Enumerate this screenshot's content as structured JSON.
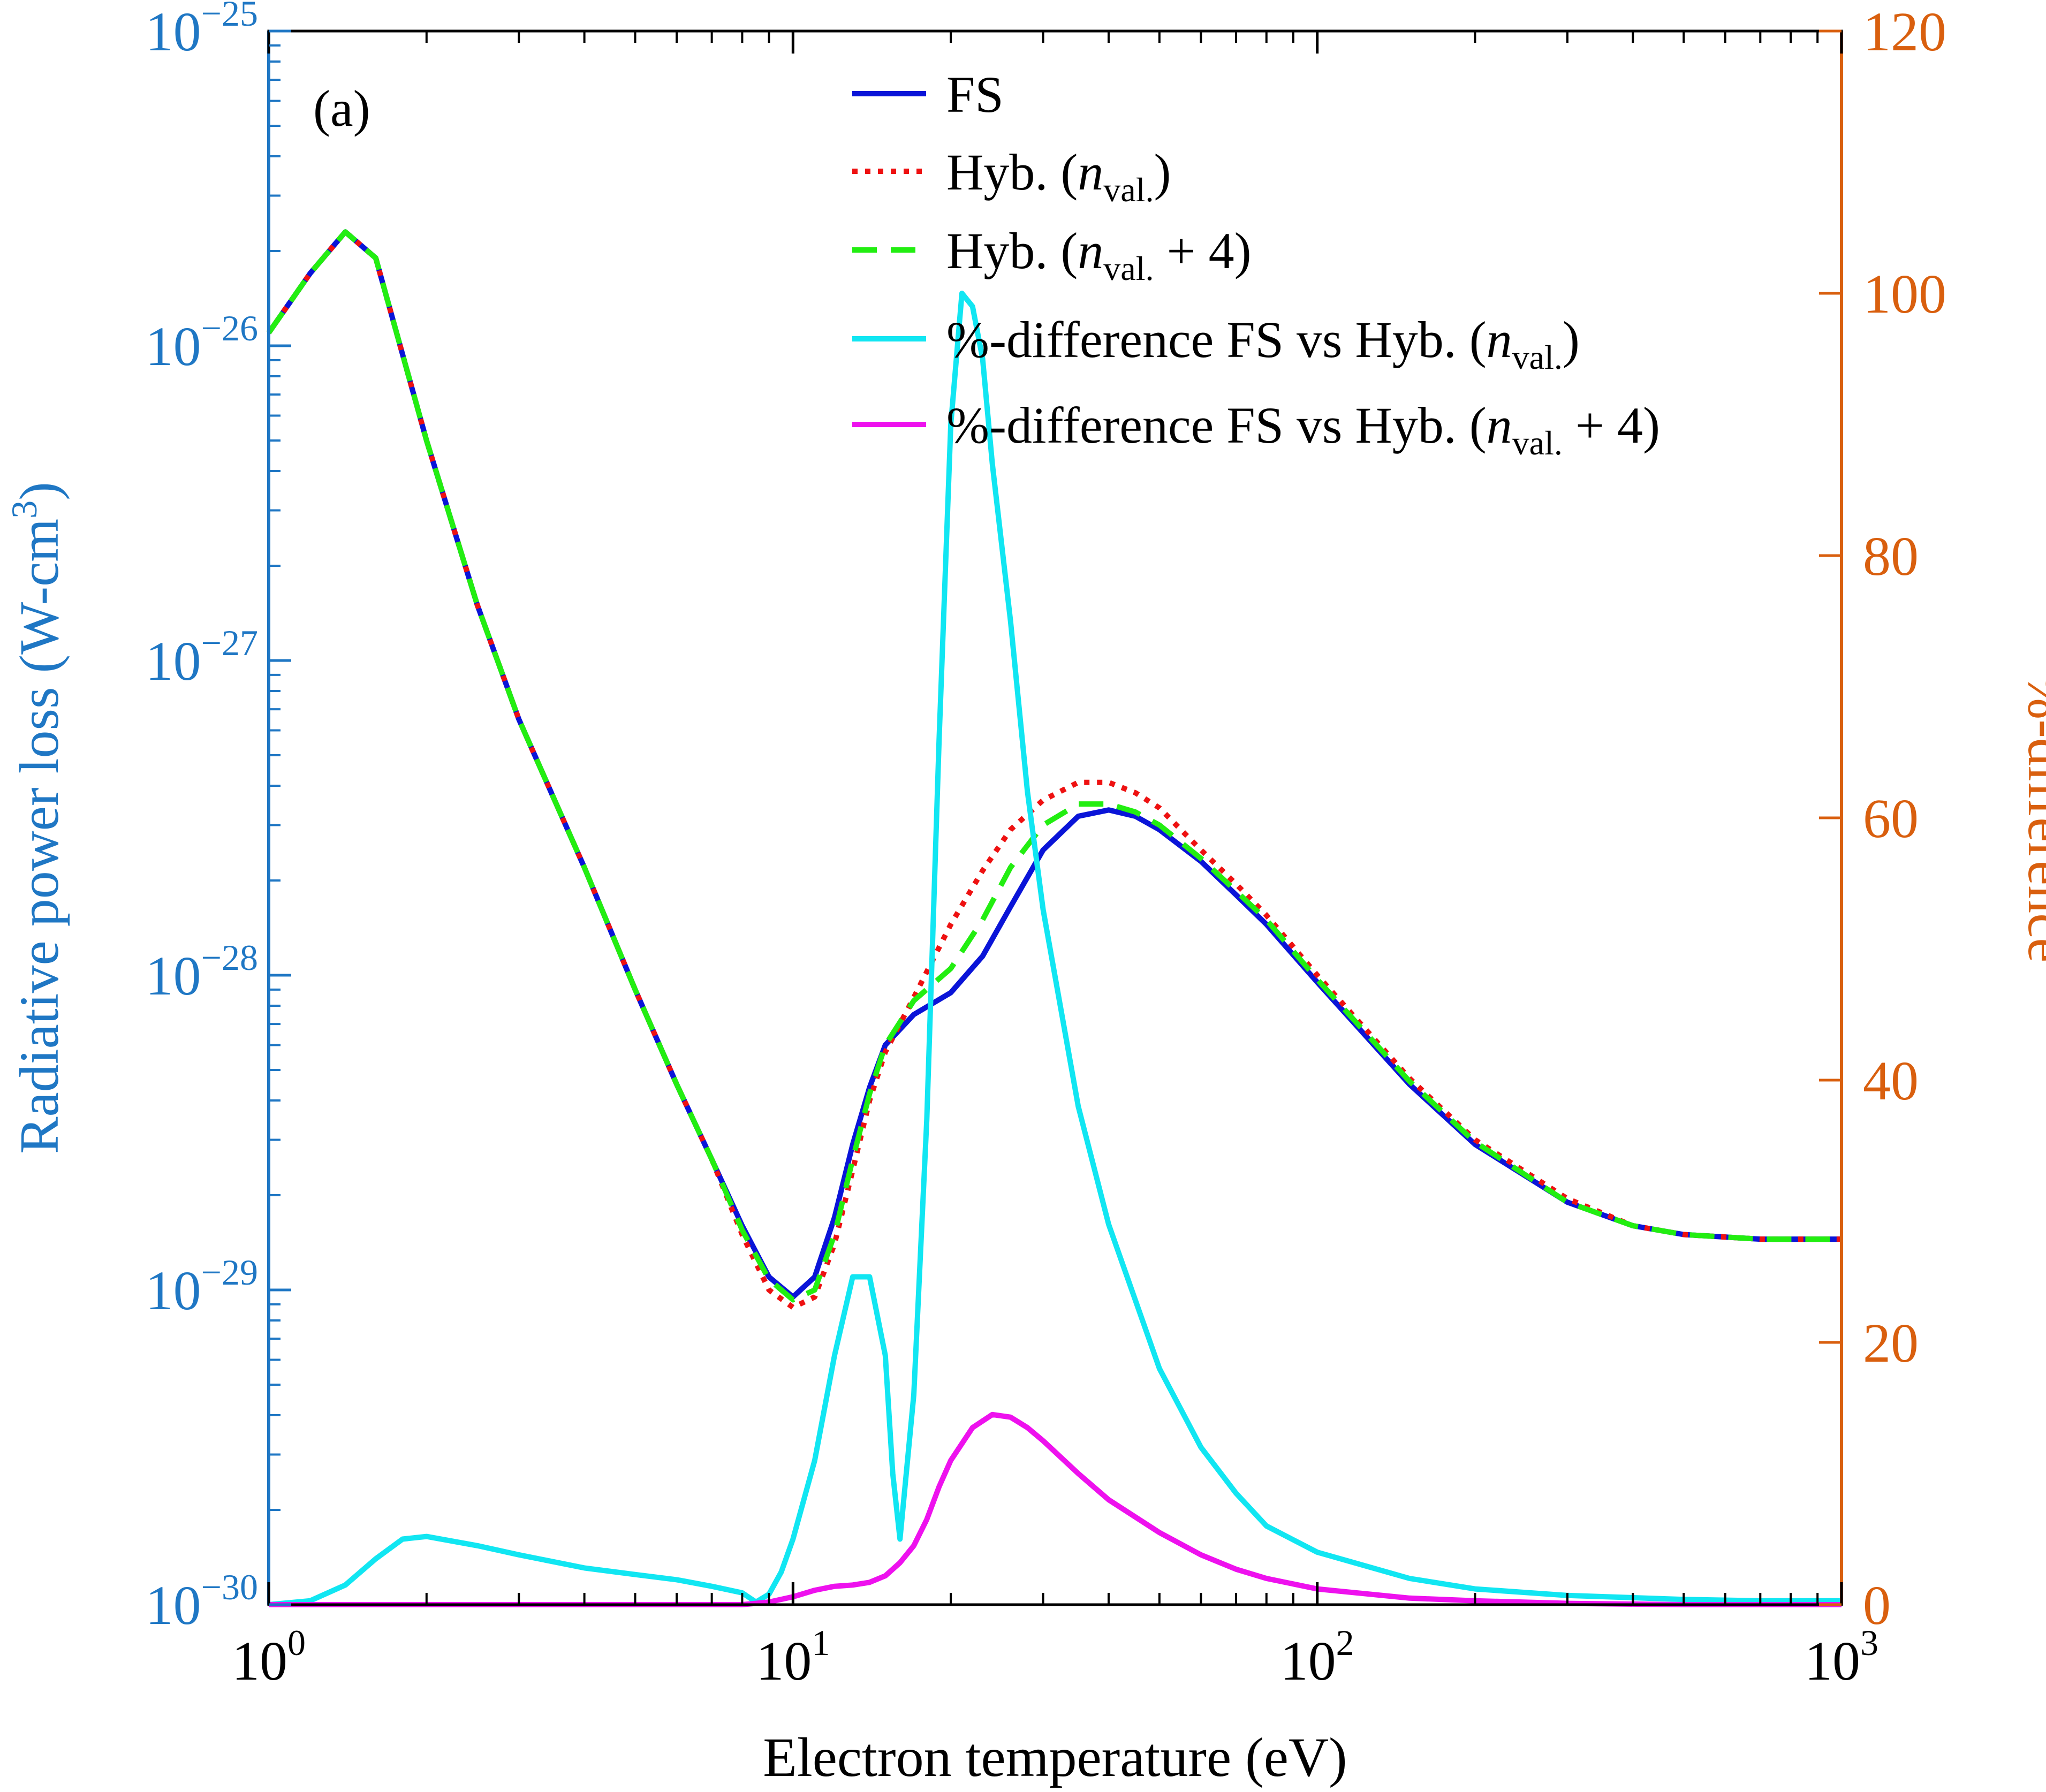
{
  "chart_data": {
    "type": "line",
    "panel_label": "(a)",
    "xlabel": "Electron temperature (eV)",
    "ylabel_left": "Radiative power loss (W-cm",
    "ylabel_left_sup": "3",
    "ylabel_left_close": ")",
    "ylabel_right": "%-difference",
    "xscale": "log",
    "xlim": [
      1,
      1000
    ],
    "x_ticks": [
      {
        "value": 1,
        "base": "10",
        "exp": "0"
      },
      {
        "value": 10,
        "base": "10",
        "exp": "1"
      },
      {
        "value": 100,
        "base": "10",
        "exp": "2"
      },
      {
        "value": 1000,
        "base": "10",
        "exp": "3"
      }
    ],
    "yscale_left": "log",
    "ylim_left": [
      1e-30,
      1e-25
    ],
    "y_left_ticks": [
      {
        "value": 1e-25,
        "base": "10",
        "exp": "−25"
      },
      {
        "value": 1e-26,
        "base": "10",
        "exp": "−26"
      },
      {
        "value": 1e-27,
        "base": "10",
        "exp": "−27"
      },
      {
        "value": 1e-28,
        "base": "10",
        "exp": "−28"
      },
      {
        "value": 1e-29,
        "base": "10",
        "exp": "−29"
      },
      {
        "value": 1e-30,
        "base": "10",
        "exp": "−30"
      }
    ],
    "ylim_right": [
      0,
      120
    ],
    "y_right_ticks": [
      "0",
      "20",
      "40",
      "60",
      "80",
      "100",
      "120"
    ],
    "colors": {
      "left_axis": "#1f77c4",
      "right_axis": "#d95f0e",
      "frame": "#000000"
    },
    "legend": {
      "position": "top-center",
      "entries": [
        {
          "key": "fs",
          "label_main": "FS",
          "label_italic": "",
          "label_sub": "",
          "label_tail": ""
        },
        {
          "key": "hyb",
          "label_main": "Hyb. (",
          "label_italic": "n",
          "label_sub": "val.",
          "label_tail": ")"
        },
        {
          "key": "hyb4",
          "label_main": "Hyb. (",
          "label_italic": "n",
          "label_sub": "val.",
          "label_tail": " + 4)"
        },
        {
          "key": "pdiff_hyb",
          "label_main": "%-difference FS vs Hyb. (",
          "label_italic": "n",
          "label_sub": "val.",
          "label_tail": ")"
        },
        {
          "key": "pdiff_hyb4",
          "label_main": "%-difference FS vs Hyb. (",
          "label_italic": "n",
          "label_sub": "val.",
          "label_tail": " + 4)"
        }
      ]
    },
    "series": [
      {
        "key": "fs",
        "name": "FS",
        "axis": "left",
        "color": "#0a14d8",
        "style": "solid",
        "x": [
          1,
          1.2,
          1.4,
          1.6,
          2,
          2.5,
          3,
          4,
          5,
          6,
          7,
          8,
          9,
          10,
          11,
          12,
          13,
          14,
          15,
          17,
          20,
          23,
          26,
          30,
          35,
          40,
          45,
          50,
          60,
          70,
          80,
          100,
          150,
          200,
          300,
          400,
          500,
          700,
          1000
        ],
        "y": [
          1.1e-26,
          1.7e-26,
          2.3e-26,
          1.9e-26,
          5e-27,
          1.5e-27,
          6.5e-28,
          2.2e-28,
          9e-29,
          4.5e-29,
          2.6e-29,
          1.6e-29,
          1.1e-29,
          9.5e-30,
          1.1e-29,
          1.7e-29,
          2.9e-29,
          4.4e-29,
          6e-29,
          7.5e-29,
          8.8e-29,
          1.15e-28,
          1.65e-28,
          2.5e-28,
          3.2e-28,
          3.35e-28,
          3.2e-28,
          2.9e-28,
          2.3e-28,
          1.8e-28,
          1.45e-28,
          9.5e-29,
          4.5e-29,
          2.9e-29,
          1.9e-29,
          1.6e-29,
          1.5e-29,
          1.45e-29,
          1.45e-29
        ]
      },
      {
        "key": "hyb",
        "name": "Hyb. (n_val.)",
        "axis": "left",
        "color": "#ee1111",
        "style": "dotted",
        "x": [
          1,
          1.2,
          1.4,
          1.6,
          2,
          2.5,
          3,
          4,
          5,
          6,
          7,
          8,
          9,
          10,
          11,
          12,
          13,
          14,
          15,
          17,
          20,
          23,
          26,
          30,
          35,
          40,
          45,
          50,
          60,
          70,
          80,
          100,
          150,
          200,
          300,
          400,
          500,
          700,
          1000
        ],
        "y": [
          1.1e-26,
          1.7e-26,
          2.3e-26,
          1.9e-26,
          5e-27,
          1.5e-27,
          6.5e-28,
          2.2e-28,
          9e-29,
          4.5e-29,
          2.6e-29,
          1.5e-29,
          1e-29,
          8.8e-30,
          9.5e-30,
          1.4e-29,
          2.4e-29,
          4e-29,
          5.7e-29,
          8.5e-29,
          1.45e-28,
          2.15e-28,
          2.9e-28,
          3.6e-28,
          4.1e-28,
          4.1e-28,
          3.8e-28,
          3.4e-28,
          2.5e-28,
          1.95e-28,
          1.55e-28,
          1e-28,
          4.7e-29,
          3e-29,
          1.95e-29,
          1.6e-29,
          1.5e-29,
          1.45e-29,
          1.45e-29
        ]
      },
      {
        "key": "hyb4",
        "name": "Hyb. (n_val. + 4)",
        "axis": "left",
        "color": "#22ee11",
        "style": "dashed",
        "x": [
          1,
          1.2,
          1.4,
          1.6,
          2,
          2.5,
          3,
          4,
          5,
          6,
          7,
          8,
          9,
          10,
          11,
          12,
          13,
          14,
          15,
          17,
          20,
          23,
          26,
          30,
          35,
          40,
          45,
          50,
          60,
          70,
          80,
          100,
          150,
          200,
          300,
          400,
          500,
          700,
          1000
        ],
        "y": [
          1.1e-26,
          1.7e-26,
          2.3e-26,
          1.9e-26,
          5e-27,
          1.5e-27,
          6.5e-28,
          2.2e-28,
          9e-29,
          4.5e-29,
          2.6e-29,
          1.55e-29,
          1.08e-29,
          9.3e-30,
          1e-29,
          1.5e-29,
          2.6e-29,
          4.2e-29,
          6e-29,
          8.3e-29,
          1.05e-28,
          1.5e-28,
          2.2e-28,
          3e-28,
          3.5e-28,
          3.5e-28,
          3.3e-28,
          3e-28,
          2.35e-28,
          1.85e-28,
          1.5e-28,
          9.7e-29,
          4.6e-29,
          2.95e-29,
          1.9e-29,
          1.6e-29,
          1.5e-29,
          1.45e-29,
          1.45e-29
        ]
      },
      {
        "key": "pdiff_hyb",
        "name": "%-difference FS vs Hyb. (n_val.)",
        "axis": "right",
        "color": "#11e6f2",
        "style": "solid",
        "x": [
          1,
          1.2,
          1.4,
          1.6,
          1.8,
          2,
          2.5,
          3,
          4,
          5,
          6,
          7,
          8,
          8.5,
          9,
          9.5,
          10,
          11,
          12,
          13,
          14,
          15,
          15.5,
          16,
          17,
          18,
          19,
          20,
          21,
          22,
          23,
          24,
          26,
          28,
          30,
          35,
          40,
          50,
          60,
          70,
          80,
          100,
          150,
          200,
          300,
          500,
          700,
          1000
        ],
        "y": [
          0,
          0.3,
          1.5,
          3.5,
          5,
          5.2,
          4.5,
          3.8,
          2.8,
          2.3,
          1.9,
          1.4,
          0.9,
          0.2,
          0.8,
          2.5,
          5,
          11,
          19,
          25,
          25,
          19,
          10,
          5,
          16,
          37,
          66,
          90,
          100,
          99,
          95,
          87,
          75,
          62,
          53,
          38,
          29,
          18,
          12,
          8.5,
          6,
          4,
          2,
          1.2,
          0.7,
          0.4,
          0.3,
          0.3
        ]
      },
      {
        "key": "pdiff_hyb4",
        "name": "%-difference FS vs Hyb. (n_val. + 4)",
        "axis": "right",
        "color": "#ee11ee",
        "style": "solid",
        "x": [
          1,
          2,
          5,
          8,
          9,
          10,
          11,
          12,
          13,
          14,
          15,
          16,
          17,
          18,
          19,
          20,
          22,
          24,
          26,
          28,
          30,
          35,
          40,
          50,
          60,
          70,
          80,
          100,
          150,
          200,
          300,
          500,
          1000
        ],
        "y": [
          0,
          0,
          0,
          0,
          0.2,
          0.6,
          1.1,
          1.4,
          1.5,
          1.7,
          2.2,
          3.2,
          4.5,
          6.5,
          9,
          11,
          13.5,
          14.5,
          14.3,
          13.5,
          12.5,
          10,
          8,
          5.5,
          3.8,
          2.7,
          2,
          1.2,
          0.5,
          0.3,
          0.1,
          0,
          0
        ]
      }
    ]
  }
}
